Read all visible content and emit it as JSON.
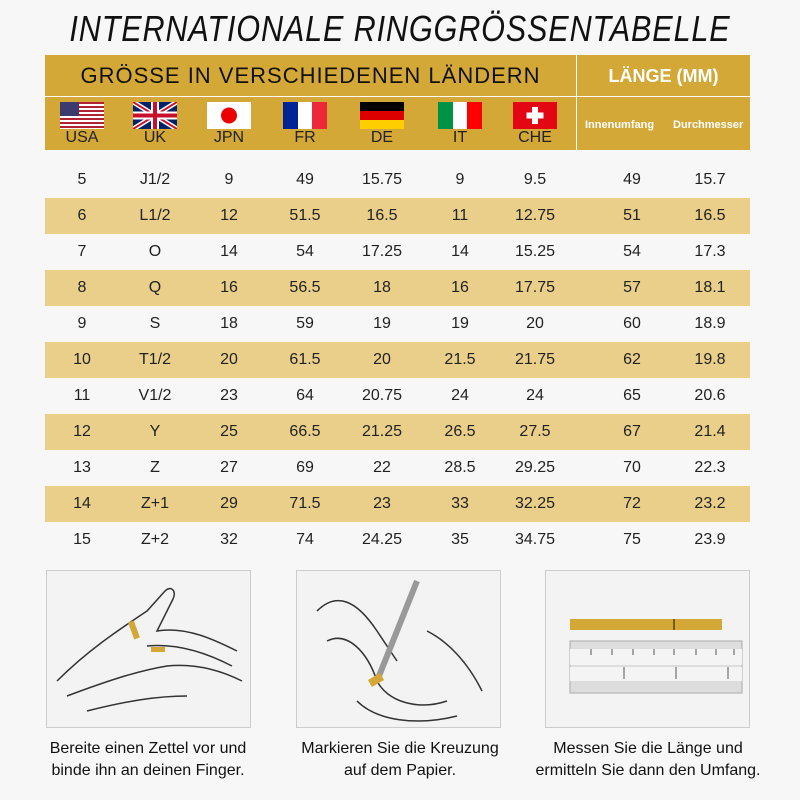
{
  "title": "INTERNATIONALE RINGGRÖSSENTABELLE",
  "header": {
    "countries_label": "GRÖSSE IN VERSCHIEDENEN LÄNDERN",
    "length_label": "LÄNGE (MM)",
    "countries": [
      {
        "code": "USA",
        "flag": "us-flag"
      },
      {
        "code": "UK",
        "flag": "uk-flag"
      },
      {
        "code": "JPN",
        "flag": "japan-flag"
      },
      {
        "code": "FR",
        "flag": "france-flag"
      },
      {
        "code": "DE",
        "flag": "germany-flag"
      },
      {
        "code": "IT",
        "flag": "italy-flag"
      },
      {
        "code": "CHE",
        "flag": "swiss-flag"
      }
    ],
    "length_cols": [
      "Innenumfang",
      "Durchmesser"
    ]
  },
  "colors": {
    "gold": "#d3a837",
    "stripe": "#e9cf89"
  },
  "rows": [
    [
      "5",
      "J1/2",
      "9",
      "49",
      "15.75",
      "9",
      "9.5",
      "49",
      "15.7"
    ],
    [
      "6",
      "L1/2",
      "12",
      "51.5",
      "16.5",
      "11",
      "12.75",
      "51",
      "16.5"
    ],
    [
      "7",
      "O",
      "14",
      "54",
      "17.25",
      "14",
      "15.25",
      "54",
      "17.3"
    ],
    [
      "8",
      "Q",
      "16",
      "56.5",
      "18",
      "16",
      "17.75",
      "57",
      "18.1"
    ],
    [
      "9",
      "S",
      "18",
      "59",
      "19",
      "19",
      "20",
      "60",
      "18.9"
    ],
    [
      "10",
      "T1/2",
      "20",
      "61.5",
      "20",
      "21.5",
      "21.75",
      "62",
      "19.8"
    ],
    [
      "11",
      "V1/2",
      "23",
      "64",
      "20.75",
      "24",
      "24",
      "65",
      "20.6"
    ],
    [
      "12",
      "Y",
      "25",
      "66.5",
      "21.25",
      "26.5",
      "27.5",
      "67",
      "21.4"
    ],
    [
      "13",
      "Z",
      "27",
      "69",
      "22",
      "28.5",
      "29.25",
      "70",
      "22.3"
    ],
    [
      "14",
      "Z+1",
      "29",
      "71.5",
      "23",
      "33",
      "32.25",
      "72",
      "23.2"
    ],
    [
      "15",
      "Z+2",
      "32",
      "74",
      "24.25",
      "35",
      "34.75",
      "75",
      "23.9"
    ]
  ],
  "steps": [
    {
      "line1": "Bereite einen Zettel vor und",
      "line2": "binde ihn an deinen Finger."
    },
    {
      "line1": "Markieren Sie die Kreuzung",
      "line2": "auf dem Papier."
    },
    {
      "line1": "Messen Sie die Länge und",
      "line2": "ermitteln Sie dann den Umfang."
    }
  ]
}
